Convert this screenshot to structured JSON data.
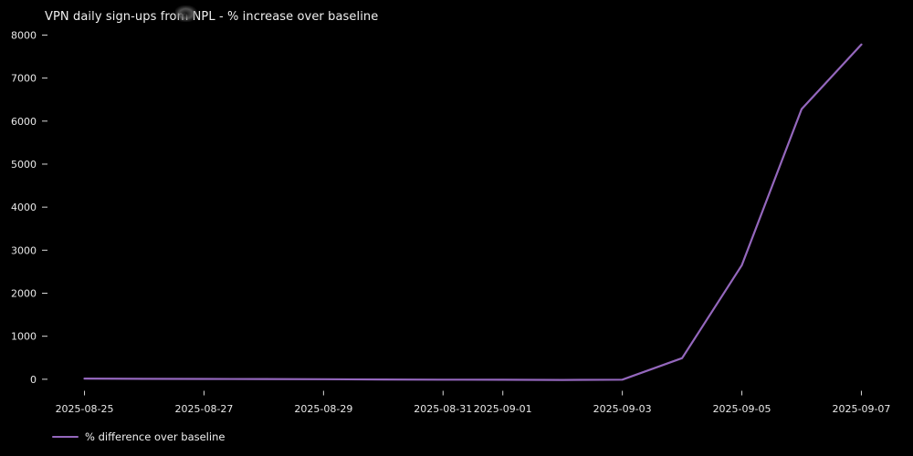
{
  "figure": {
    "title": "VPN daily sign-ups from NPL - % increase over baseline",
    "background_color": "#000000",
    "text_color": "#f0f0f0",
    "tick_color": "#d9d9d9",
    "line_color": "#9467bd"
  },
  "legend": {
    "label": "% difference over baseline"
  },
  "chart_data": {
    "type": "line",
    "title": "VPN daily sign-ups from NPL - % increase over baseline",
    "xlabel": "",
    "ylabel": "",
    "x": [
      "2025-08-25",
      "2025-08-26",
      "2025-08-27",
      "2025-08-28",
      "2025-08-29",
      "2025-08-30",
      "2025-08-31",
      "2025-09-01",
      "2025-09-02",
      "2025-09-03",
      "2025-09-04",
      "2025-09-05",
      "2025-09-06",
      "2025-09-07"
    ],
    "series": [
      {
        "name": "% difference over baseline",
        "color": "#9467bd",
        "values": [
          15,
          10,
          8,
          5,
          0,
          -5,
          -10,
          -12,
          -15,
          -10,
          490,
          2650,
          6280,
          7780
        ]
      }
    ],
    "xticks": [
      "2025-08-25",
      "2025-08-27",
      "2025-08-29",
      "2025-08-31",
      "2025-09-01",
      "2025-09-03",
      "2025-09-05",
      "2025-09-07"
    ],
    "yticks": [
      0,
      1000,
      2000,
      3000,
      4000,
      5000,
      6000,
      7000,
      8000
    ],
    "ylim": [
      -300,
      8200
    ],
    "grid": false,
    "legend_position": "lower-left-below-axis",
    "note": "line flat near 0 until 2025-09-03, sharp exponential-style rise through 2025-09-07"
  }
}
